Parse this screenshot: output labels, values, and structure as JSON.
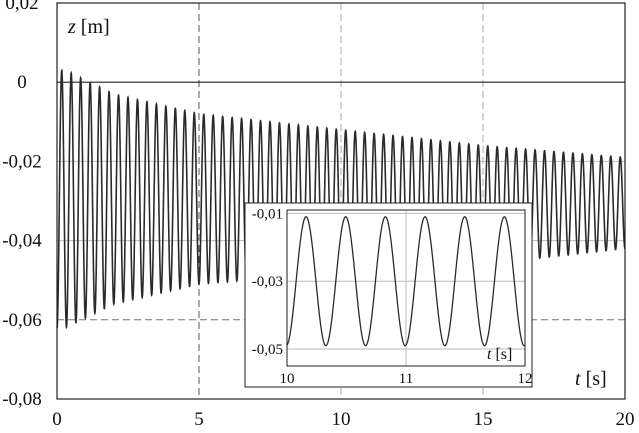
{
  "chart_data": [
    {
      "id": "main",
      "type": "line",
      "title": "",
      "xlabel": "t [s]",
      "ylabel": "z [m]",
      "xlim": [
        0,
        20
      ],
      "ylim": [
        -0.08,
        0.02
      ],
      "x_ticks": [
        0,
        5,
        10,
        15,
        20
      ],
      "y_ticks": [
        0.02,
        0,
        -0.02,
        -0.04,
        -0.06,
        -0.08
      ],
      "x_tick_labels": [
        "0",
        "5",
        "10",
        "15",
        "20"
      ],
      "y_tick_labels": [
        "0,02",
        "0",
        "-0,02",
        "-0,04",
        "-0,06",
        "-0,08"
      ],
      "grid": true,
      "reference_lines": {
        "horizontal_solid": 0,
        "horizontal_dashed": -0.06
      },
      "series": [
        {
          "frequency_hz": 3.0,
          "points": [
            {
              "t": 0.3,
              "max": 0.003,
              "min": -0.062
            },
            {
              "t": 2,
              "max": -0.003,
              "min": -0.056
            },
            {
              "t": 5,
              "max": -0.008,
              "min": -0.051
            },
            {
              "t": 10,
              "max": -0.012,
              "min": -0.048
            },
            {
              "t": 15,
              "max": -0.016,
              "min": -0.046
            },
            {
              "t": 20,
              "max": -0.019,
              "min": -0.042
            }
          ]
        }
      ]
    },
    {
      "id": "inset",
      "type": "line",
      "title": "",
      "xlabel": "t [s]",
      "ylabel": "",
      "xlim": [
        10,
        12
      ],
      "ylim": [
        -0.055,
        -0.009
      ],
      "x_ticks": [
        10,
        11,
        12
      ],
      "y_ticks": [
        -0.01,
        -0.03,
        -0.05
      ],
      "x_tick_labels": [
        "10",
        "11",
        "12"
      ],
      "y_tick_labels": [
        "-0,01",
        "-0,03",
        "-0,05"
      ],
      "grid": true,
      "series": [
        {
          "frequency_hz": 3.0,
          "max": -0.011,
          "min": -0.049,
          "first_peak_t": 10.16
        }
      ]
    }
  ]
}
